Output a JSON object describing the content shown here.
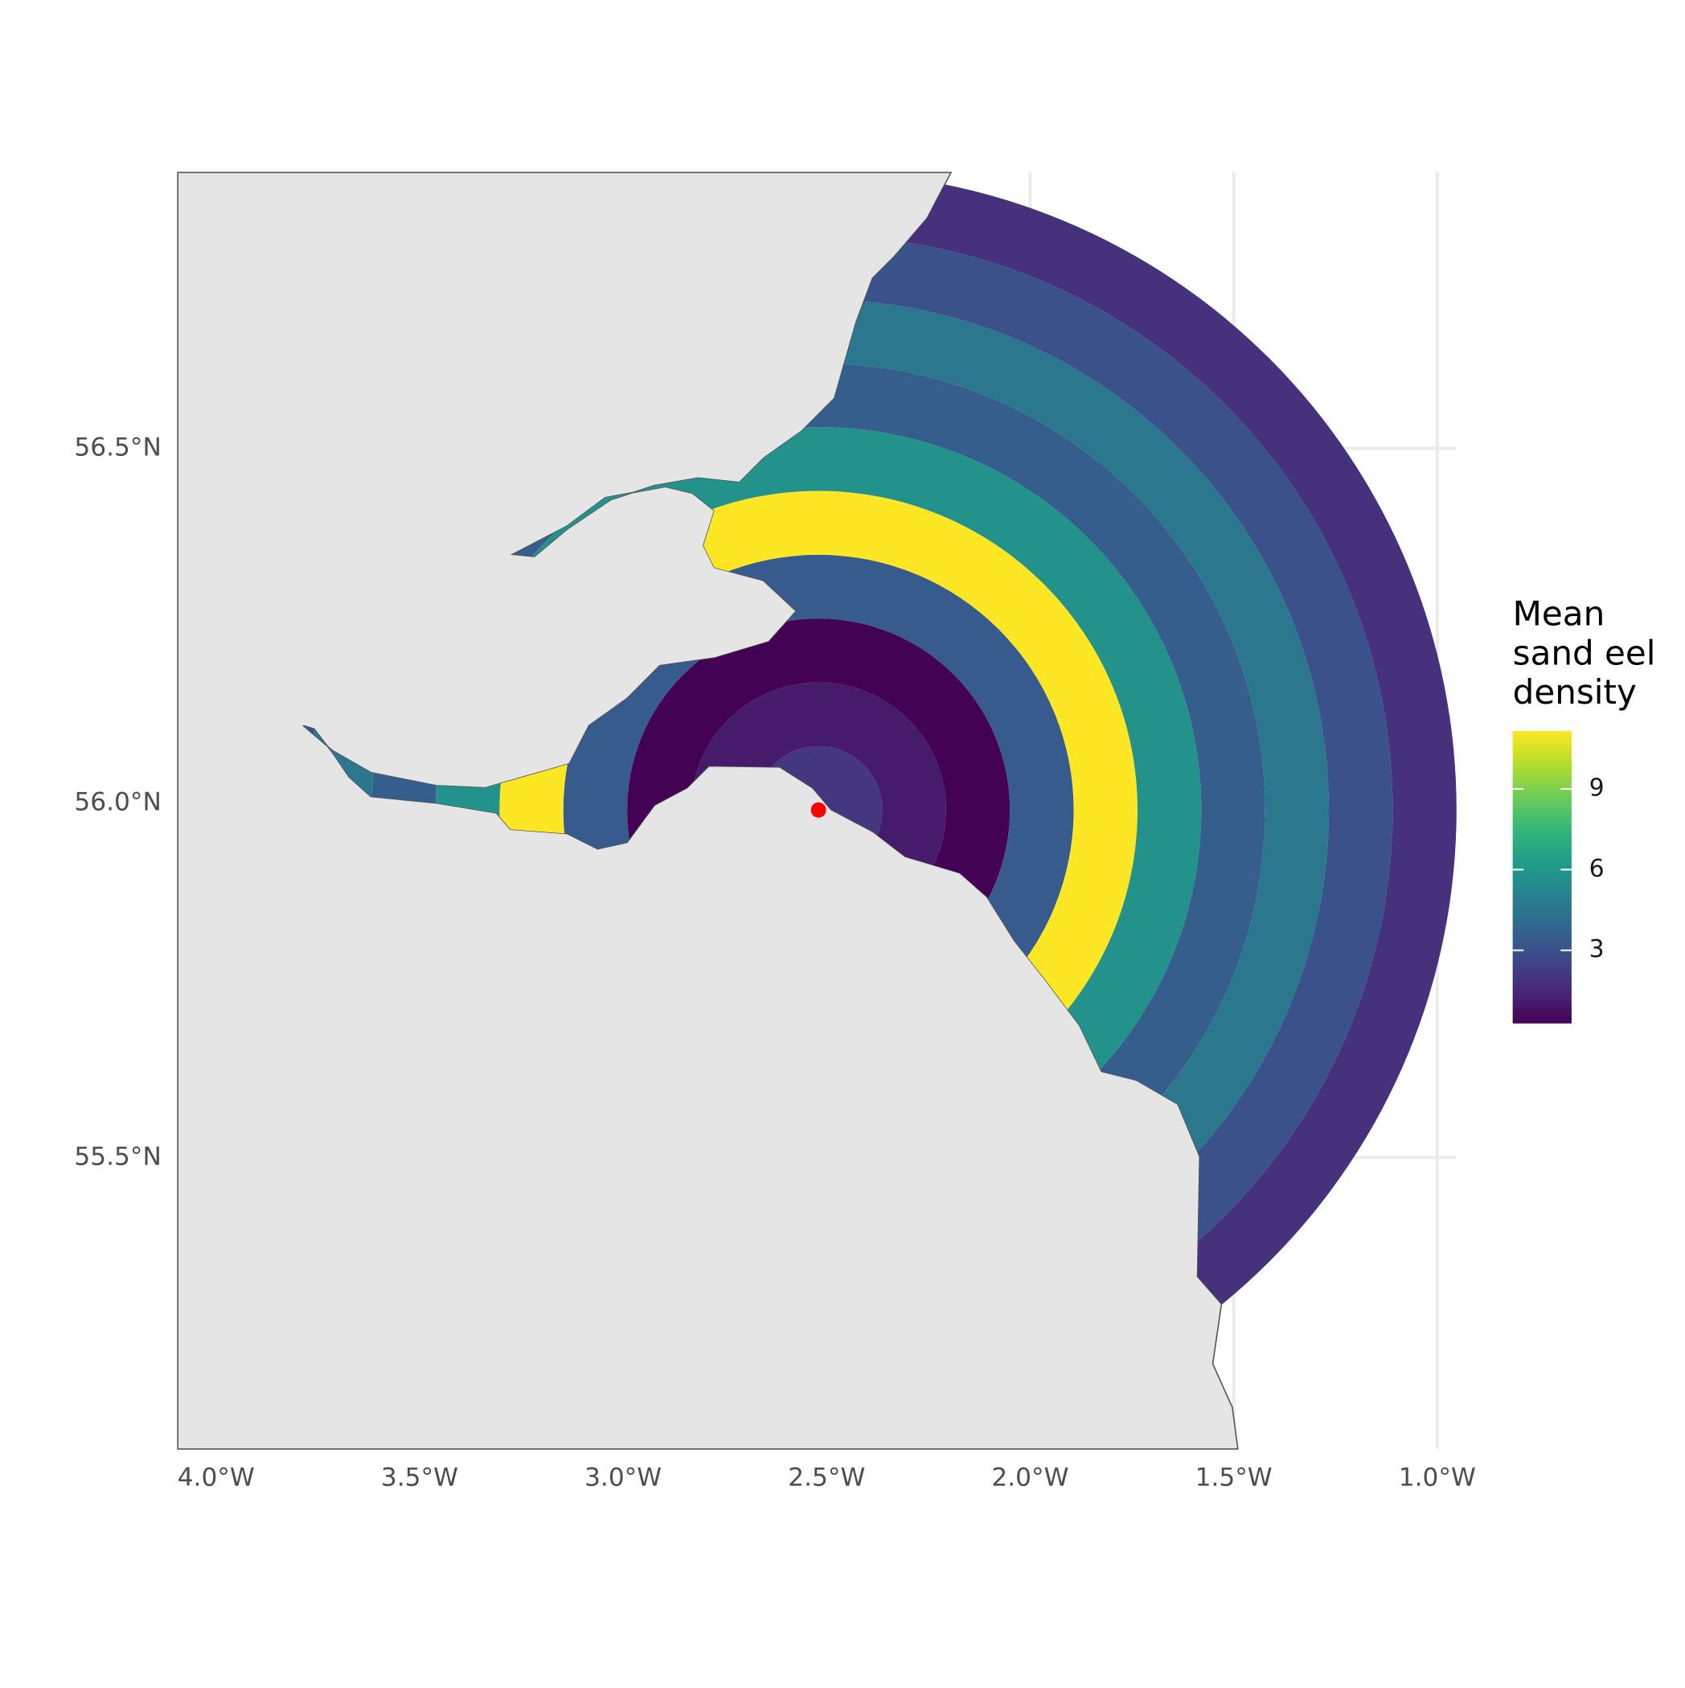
{
  "chart_data": {
    "type": "rings",
    "legend_title": "Mean sand eel density",
    "values": [
      2.0,
      1.1,
      0.3,
      3.4,
      11.2,
      5.8,
      3.5,
      4.6,
      3.0,
      1.8
    ],
    "point": {
      "x": -2.52,
      "y": 55.99,
      "color": "#ff0000"
    },
    "land_color": "#e5e5e5",
    "coast_color": "#555555",
    "grid": true,
    "grid_color": "#ebebeb",
    "colormap": [
      "#440154",
      "#482878",
      "#3e4989",
      "#31688e",
      "#26828e",
      "#1f9e89",
      "#35b779",
      "#6ece58",
      "#b5de2b",
      "#fde725"
    ],
    "clim": [
      0.28,
      11.15
    ],
    "colorbar_ticks": [
      3,
      6,
      9
    ],
    "xlim": [
      -4.094,
      -0.954
    ],
    "ylim": [
      55.089,
      56.889
    ],
    "xticks": [
      {
        "value": -4.0,
        "label": "4.0°W"
      },
      {
        "value": -3.5,
        "label": "3.5°W"
      },
      {
        "value": -3.0,
        "label": "3.0°W"
      },
      {
        "value": -2.5,
        "label": "2.5°W"
      },
      {
        "value": -2.0,
        "label": "2.0°W"
      },
      {
        "value": -1.5,
        "label": "1.5°W"
      },
      {
        "value": -1.0,
        "label": "1.0°W"
      }
    ],
    "yticks": [
      {
        "value": 55.5,
        "label": "55.5°N"
      },
      {
        "value": 56.0,
        "label": "56.0°N"
      },
      {
        "value": 56.5,
        "label": "56.5°N"
      }
    ]
  }
}
